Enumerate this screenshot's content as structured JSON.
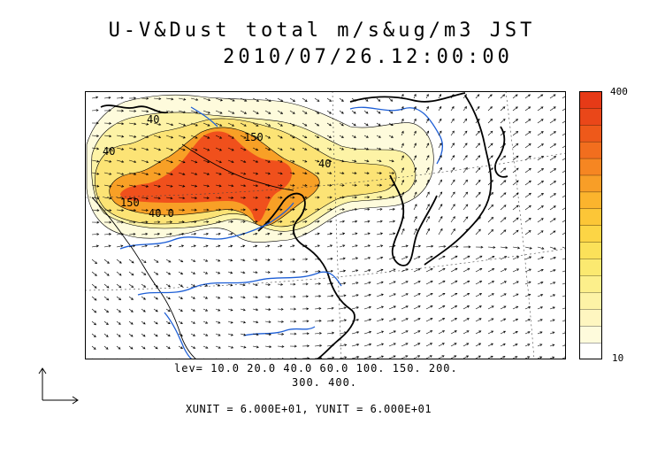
{
  "title": {
    "line1": "U-V&Dust total m/s&ug/m3 JST",
    "line2": "2010/07/26.12:00:00"
  },
  "contour_labels": [
    "40",
    "150",
    "40",
    "150",
    "40.0",
    "40"
  ],
  "levels": {
    "line1": "lev= 10.0 20.0 40.0 60.0 100. 150. 200.",
    "line2": "300. 400."
  },
  "units": "XUNIT = 6.000E+01, YUNIT = 6.000E+01",
  "colorbar": {
    "max_label": "400",
    "min_label": "10",
    "colors": [
      "#ffffff",
      "#fefbdc",
      "#fef6c0",
      "#fdf3a6",
      "#fcef8b",
      "#fbe970",
      "#fbe159",
      "#fcd545",
      "#fcc637",
      "#fbb42d",
      "#f89e27",
      "#f68622",
      "#f26e1e",
      "#ee591a",
      "#ea4719",
      "#e63a17"
    ]
  },
  "colors": {
    "coast": "#000000",
    "rivers": "#1e5fd6",
    "dust_core": "#f0501c"
  }
}
